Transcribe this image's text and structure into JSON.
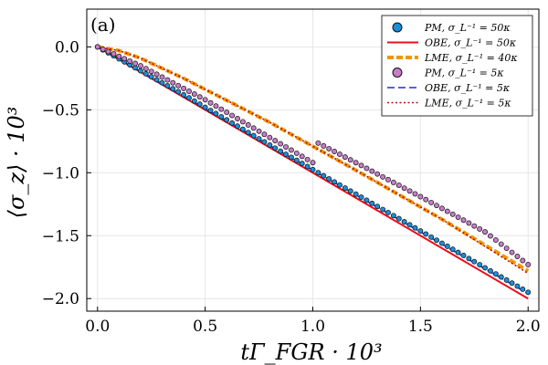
{
  "chart_data": {
    "type": "line",
    "panel_label": "(a)",
    "xlabel": "tΓ_FGR · 10³",
    "ylabel": "⟨σ_z⟩ · 10³",
    "xlim": [
      -0.05,
      2.05
    ],
    "ylim": [
      -2.1,
      0.3
    ],
    "xticks": [
      0.0,
      0.5,
      1.0,
      1.5,
      2.0
    ],
    "xtick_labels": [
      "0.0",
      "0.5",
      "1.0",
      "1.5",
      "2.0"
    ],
    "yticks": [
      0.0,
      -0.5,
      -1.0,
      -1.5,
      -2.0
    ],
    "ytick_labels": [
      "0.0",
      "−0.5",
      "−1.0",
      "−1.5",
      "−2.0"
    ],
    "grid": true,
    "legend_position": "top-right",
    "series": [
      {
        "name": "PM, σ_L⁻¹ = 50κ",
        "style": "markers",
        "color": "#1a8fd8",
        "x": [
          0.0,
          0.4,
          0.8,
          1.2,
          1.6,
          2.0
        ],
        "y": [
          0.0,
          -0.38,
          -0.78,
          -1.17,
          -1.56,
          -1.95
        ]
      },
      {
        "name": "OBE, σ_L⁻¹ = 50κ",
        "style": "solid",
        "color": "#e8101c",
        "x": [
          0.0,
          2.0
        ],
        "y": [
          0.0,
          -2.0
        ]
      },
      {
        "name": "LME, σ_L⁻¹ = 40κ",
        "style": "thick",
        "color": "#f29500",
        "x": [
          0.0,
          0.1,
          0.2,
          0.4,
          0.8,
          1.2,
          1.6,
          2.0
        ],
        "y": [
          0.0,
          -0.03,
          -0.09,
          -0.25,
          -0.6,
          -0.98,
          -1.37,
          -1.78
        ]
      },
      {
        "name": "PM, σ_L⁻¹ = 5κ",
        "style": "markers",
        "color": "#c77dc9",
        "x": [
          0.0,
          0.2,
          0.5,
          0.8,
          1.0,
          1.02,
          1.2,
          1.5,
          1.8,
          2.0
        ],
        "y": [
          0.0,
          -0.15,
          -0.42,
          -0.72,
          -0.92,
          -0.76,
          -0.92,
          -1.19,
          -1.47,
          -1.73
        ]
      },
      {
        "name": "OBE, σ_L⁻¹ = 5κ",
        "style": "dashed",
        "color": "#1f2fd6",
        "x": [
          0.0,
          2.0
        ],
        "y": [
          0.0,
          -1.96
        ]
      },
      {
        "name": "LME, σ_L⁻¹ = 5κ",
        "style": "dotted",
        "color": "#b0120f",
        "x": [
          0.0,
          0.1,
          0.2,
          0.4,
          0.8,
          1.2,
          1.6,
          2.0
        ],
        "y": [
          0.0,
          -0.03,
          -0.09,
          -0.25,
          -0.6,
          -0.98,
          -1.37,
          -1.8
        ]
      }
    ]
  }
}
